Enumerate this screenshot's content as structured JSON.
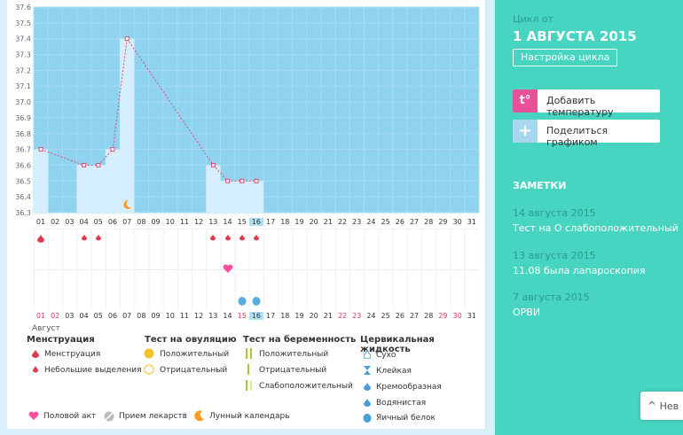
{
  "chart_data": {
    "type": "bar",
    "categories": [
      "01",
      "02",
      "03",
      "04",
      "05",
      "06",
      "07",
      "08",
      "09",
      "10",
      "11",
      "12",
      "13",
      "14",
      "15",
      "16",
      "17",
      "18",
      "19",
      "20",
      "21",
      "22",
      "23",
      "24",
      "25",
      "26",
      "27",
      "28",
      "29",
      "30",
      "31"
    ],
    "values": [
      36.7,
      null,
      null,
      36.6,
      36.6,
      36.7,
      37.4,
      null,
      null,
      null,
      null,
      null,
      36.6,
      36.5,
      36.5,
      36.5,
      null,
      null,
      null,
      null,
      null,
      null,
      null,
      null,
      null,
      null,
      null,
      null,
      null,
      null,
      null
    ],
    "ylim": [
      36.3,
      37.6
    ],
    "yticks": [
      "36.3",
      "36.4",
      "36.5",
      "36.6",
      "36.7",
      "36.8",
      "36.9",
      "37.0",
      "37.1",
      "37.2",
      "37.3",
      "37.4",
      "37.5",
      "37.6"
    ],
    "grid": true
  },
  "x_bottom_labels": [
    "01",
    "02",
    "03",
    "04",
    "05",
    "06",
    "07",
    "08",
    "09",
    "10",
    "11",
    "12",
    "13",
    "14",
    "15",
    "16",
    "17",
    "18",
    "19",
    "20",
    "21",
    "22",
    "23",
    "24",
    "25",
    "26",
    "27",
    "28",
    "29",
    "30",
    "31"
  ],
  "red_days": [
    0,
    1,
    14,
    21,
    22,
    28,
    29
  ],
  "month_label": "Август",
  "legend": {
    "menstruation": {
      "title": "Менструация",
      "items": [
        "Менструация",
        "Небольшие выделения"
      ]
    },
    "ovulation": {
      "title": "Тест на овуляцию",
      "items": [
        "Положительный",
        "Отрицательный"
      ]
    },
    "pregnancy": {
      "title": "Тест на беременность",
      "items": [
        "Положительный",
        "Отрицательный",
        "Слабоположительный"
      ]
    },
    "cervical": {
      "title": "Цервикальная жидкость",
      "items": [
        "Сухо",
        "Клейкая",
        "Кремообразная",
        "Водянистая",
        "Яичный белок"
      ]
    },
    "bottom": [
      "Половой акт",
      "Прием лекарств",
      "Лунный календарь"
    ]
  },
  "sidebar": {
    "cycle_label": "Цикл от",
    "cycle_date": "1 АВГУСТА 2015",
    "settings_button": "Настройка цикла",
    "add_temp": "Добавить температуру",
    "add_temp_icon_text": "t°",
    "share": "Поделиться графиком",
    "share_icon_text": "+",
    "notes_title": "ЗАМЕТКИ",
    "notes": [
      {
        "date": "14 августа 2015",
        "text": "Тест на О слабоположительный"
      },
      {
        "date": "13 августа 2015",
        "text": "11.08 была лапароскопия"
      },
      {
        "date": "7 августа 2015",
        "text": "ОРВИ"
      }
    ],
    "next_button": "Нев"
  },
  "colors": {
    "accent": "#47d4c0",
    "chart_bg": "#8fd3f0",
    "bar": "#d5efff",
    "line": "#e04a6a",
    "drop": "#e03a4c",
    "heart": "#ff4fa1",
    "moon": "#ff9b1a"
  }
}
